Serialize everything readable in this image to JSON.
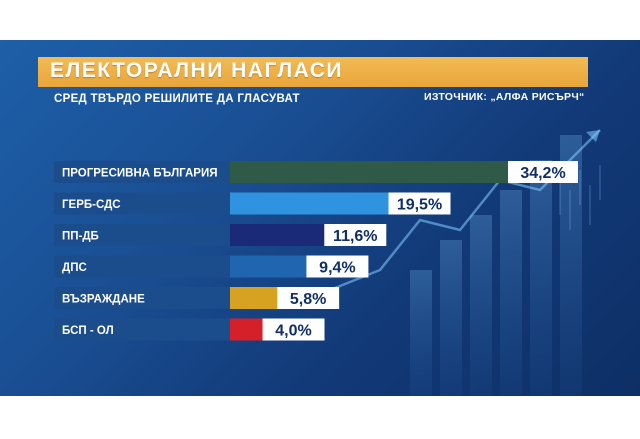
{
  "header": {
    "title": "ЕЛЕКТОРАЛНИ НАГЛАСИ",
    "subtitle": "СРЕД ТВЪРДО РЕШИЛИТЕ ДА ГЛАСУВАТ",
    "source": "ИЗТОЧНИК: „АЛФА РИСЪРЧ“"
  },
  "colors": {
    "title_bar": "#eba93f",
    "label_bar": "#1b4d8c",
    "value_box": "#ffffff",
    "value_text": "#0f2f66"
  },
  "chart_data": {
    "type": "bar",
    "orientation": "horizontal",
    "categories": [
      "ПРОГРЕСИВНА БЪЛГАРИЯ",
      "ГЕРБ-СДС",
      "ПП-ДБ",
      "ДПС",
      "ВЪЗРАЖДАНЕ",
      "БСП - ОЛ"
    ],
    "values": [
      34.2,
      19.5,
      11.6,
      9.4,
      5.8,
      4.0
    ],
    "value_labels": [
      "34,2%",
      "19,5%",
      "11,6%",
      "9,4%",
      "5,8%",
      "4,0%"
    ],
    "colors": [
      "#2e5a47",
      "#2f93df",
      "#1a2a78",
      "#1f65b0",
      "#d7a21f",
      "#d5202a"
    ],
    "xlim": [
      0,
      34.2
    ],
    "grid": false
  }
}
